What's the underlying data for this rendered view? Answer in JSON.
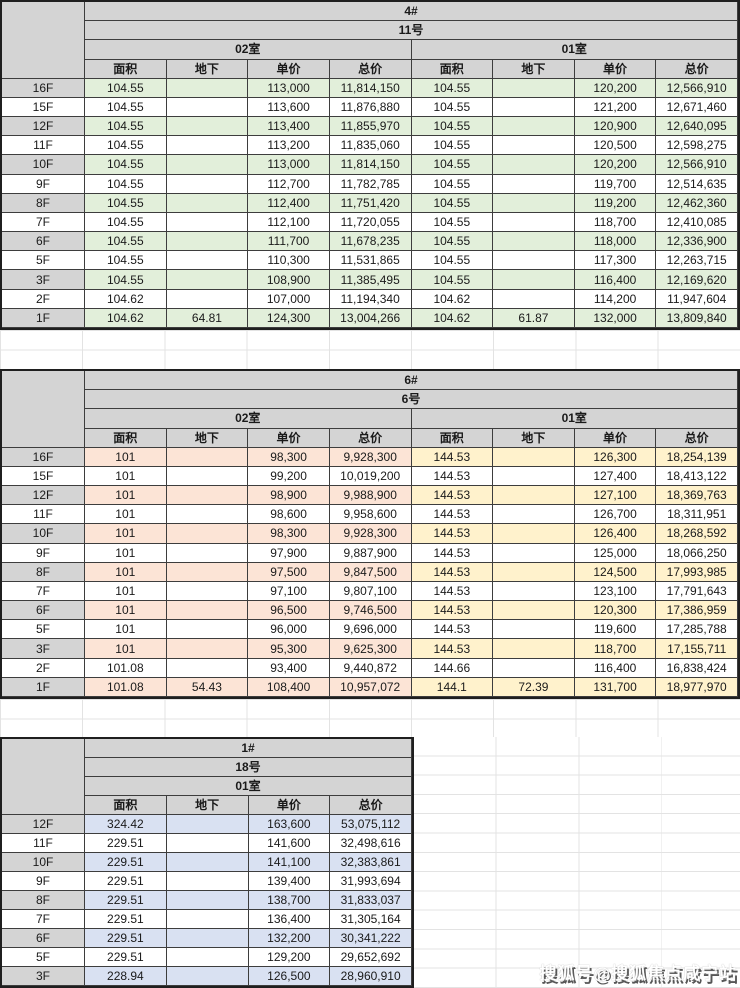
{
  "colors": {
    "header_gray": "#d4d4d4",
    "table4_fill": "#e2efda",
    "table6_left_fill": "#fce4d6",
    "table6_right_fill": "#fff2cc",
    "table1_fill": "#d9e1f2",
    "border_dark": "#1f1f1f",
    "gridline": "#e3e3e3"
  },
  "header_labels": [
    "面积",
    "地下",
    "单价",
    "总价"
  ],
  "tables": [
    {
      "building": "4#",
      "line": "11号",
      "unit_groups": [
        "02室",
        "01室"
      ],
      "fill_left": "#e2efda",
      "fill_right": "#e2efda",
      "rows": [
        {
          "floor": "16F",
          "values": [
            "104.55",
            "",
            "113,000",
            "11,814,150",
            "104.55",
            "",
            "120,200",
            "12,566,910"
          ]
        },
        {
          "floor": "15F",
          "values": [
            "104.55",
            "",
            "113,600",
            "11,876,880",
            "104.55",
            "",
            "121,200",
            "12,671,460"
          ]
        },
        {
          "floor": "12F",
          "values": [
            "104.55",
            "",
            "113,400",
            "11,855,970",
            "104.55",
            "",
            "120,900",
            "12,640,095"
          ]
        },
        {
          "floor": "11F",
          "values": [
            "104.55",
            "",
            "113,200",
            "11,835,060",
            "104.55",
            "",
            "120,500",
            "12,598,275"
          ]
        },
        {
          "floor": "10F",
          "values": [
            "104.55",
            "",
            "113,000",
            "11,814,150",
            "104.55",
            "",
            "120,200",
            "12,566,910"
          ]
        },
        {
          "floor": "9F",
          "values": [
            "104.55",
            "",
            "112,700",
            "11,782,785",
            "104.55",
            "",
            "119,700",
            "12,514,635"
          ]
        },
        {
          "floor": "8F",
          "values": [
            "104.55",
            "",
            "112,400",
            "11,751,420",
            "104.55",
            "",
            "119,200",
            "12,462,360"
          ]
        },
        {
          "floor": "7F",
          "values": [
            "104.55",
            "",
            "112,100",
            "11,720,055",
            "104.55",
            "",
            "118,700",
            "12,410,085"
          ]
        },
        {
          "floor": "6F",
          "values": [
            "104.55",
            "",
            "111,700",
            "11,678,235",
            "104.55",
            "",
            "118,000",
            "12,336,900"
          ]
        },
        {
          "floor": "5F",
          "values": [
            "104.55",
            "",
            "110,300",
            "11,531,865",
            "104.55",
            "",
            "117,300",
            "12,263,715"
          ]
        },
        {
          "floor": "3F",
          "values": [
            "104.55",
            "",
            "108,900",
            "11,385,495",
            "104.55",
            "",
            "116,400",
            "12,169,620"
          ]
        },
        {
          "floor": "2F",
          "values": [
            "104.62",
            "",
            "107,000",
            "11,194,340",
            "104.62",
            "",
            "114,200",
            "11,947,604"
          ]
        },
        {
          "floor": "1F",
          "values": [
            "104.62",
            "64.81",
            "124,300",
            "13,004,266",
            "104.62",
            "61.87",
            "132,000",
            "13,809,840"
          ]
        }
      ]
    },
    {
      "building": "6#",
      "line": "6号",
      "unit_groups": [
        "02室",
        "01室"
      ],
      "fill_left": "#fce4d6",
      "fill_right": "#fff2cc",
      "rows": [
        {
          "floor": "16F",
          "values": [
            "101",
            "",
            "98,300",
            "9,928,300",
            "144.53",
            "",
            "126,300",
            "18,254,139"
          ]
        },
        {
          "floor": "15F",
          "values": [
            "101",
            "",
            "99,200",
            "10,019,200",
            "144.53",
            "",
            "127,400",
            "18,413,122"
          ]
        },
        {
          "floor": "12F",
          "values": [
            "101",
            "",
            "98,900",
            "9,988,900",
            "144.53",
            "",
            "127,100",
            "18,369,763"
          ]
        },
        {
          "floor": "11F",
          "values": [
            "101",
            "",
            "98,600",
            "9,958,600",
            "144.53",
            "",
            "126,700",
            "18,311,951"
          ]
        },
        {
          "floor": "10F",
          "values": [
            "101",
            "",
            "98,300",
            "9,928,300",
            "144.53",
            "",
            "126,400",
            "18,268,592"
          ]
        },
        {
          "floor": "9F",
          "values": [
            "101",
            "",
            "97,900",
            "9,887,900",
            "144.53",
            "",
            "125,000",
            "18,066,250"
          ]
        },
        {
          "floor": "8F",
          "values": [
            "101",
            "",
            "97,500",
            "9,847,500",
            "144.53",
            "",
            "124,500",
            "17,993,985"
          ]
        },
        {
          "floor": "7F",
          "values": [
            "101",
            "",
            "97,100",
            "9,807,100",
            "144.53",
            "",
            "123,100",
            "17,791,643"
          ]
        },
        {
          "floor": "6F",
          "values": [
            "101",
            "",
            "96,500",
            "9,746,500",
            "144.53",
            "",
            "120,300",
            "17,386,959"
          ]
        },
        {
          "floor": "5F",
          "values": [
            "101",
            "",
            "96,000",
            "9,696,000",
            "144.53",
            "",
            "119,600",
            "17,285,788"
          ]
        },
        {
          "floor": "3F",
          "values": [
            "101",
            "",
            "95,300",
            "9,625,300",
            "144.53",
            "",
            "118,700",
            "17,155,711"
          ]
        },
        {
          "floor": "2F",
          "values": [
            "101.08",
            "",
            "93,400",
            "9,440,872",
            "144.66",
            "",
            "116,400",
            "16,838,424"
          ]
        },
        {
          "floor": "1F",
          "values": [
            "101.08",
            "54.43",
            "108,400",
            "10,957,072",
            "144.1",
            "72.39",
            "131,700",
            "18,977,970"
          ]
        }
      ]
    },
    {
      "building": "1#",
      "line": "18号",
      "unit_groups": [
        "01室"
      ],
      "fill_left": "#d9e1f2",
      "fill_right": "#d9e1f2",
      "rows": [
        {
          "floor": "12F",
          "values": [
            "324.42",
            "",
            "163,600",
            "53,075,112"
          ]
        },
        {
          "floor": "11F",
          "values": [
            "229.51",
            "",
            "141,600",
            "32,498,616"
          ]
        },
        {
          "floor": "10F",
          "values": [
            "229.51",
            "",
            "141,100",
            "32,383,861"
          ]
        },
        {
          "floor": "9F",
          "values": [
            "229.51",
            "",
            "139,400",
            "31,993,694"
          ]
        },
        {
          "floor": "8F",
          "values": [
            "229.51",
            "",
            "138,700",
            "31,833,037"
          ]
        },
        {
          "floor": "7F",
          "values": [
            "229.51",
            "",
            "136,400",
            "31,305,164"
          ]
        },
        {
          "floor": "6F",
          "values": [
            "229.51",
            "",
            "132,200",
            "30,341,222"
          ]
        },
        {
          "floor": "5F",
          "values": [
            "229.51",
            "",
            "129,200",
            "29,652,692"
          ]
        },
        {
          "floor": "3F",
          "values": [
            "228.94",
            "",
            "126,500",
            "28,960,910"
          ]
        }
      ]
    }
  ],
  "watermark": {
    "text": "搜狐号@搜狐焦点咸宁站"
  }
}
